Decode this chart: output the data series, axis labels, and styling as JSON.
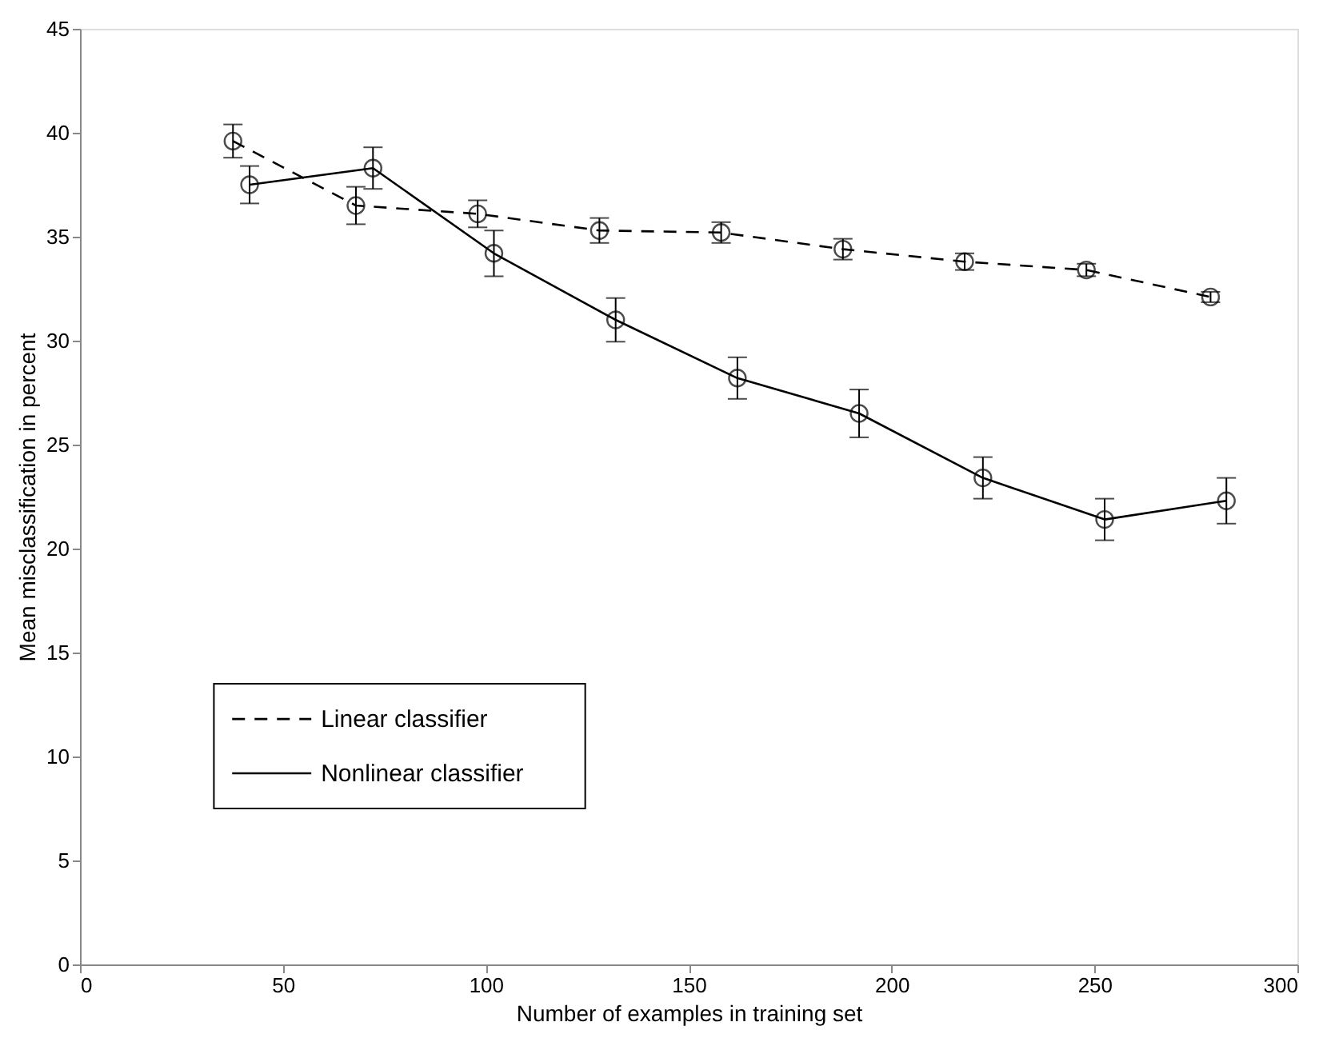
{
  "chart_data": {
    "type": "line",
    "xlabel": "Number of examples in training set",
    "ylabel": "Mean misclassification in percent",
    "xlim": [
      0,
      300
    ],
    "xticks": [
      0,
      50,
      100,
      150,
      200,
      250,
      300
    ],
    "ylim": [
      0,
      45
    ],
    "yticks": [
      0,
      5,
      10,
      15,
      20,
      25,
      30,
      35,
      40,
      45
    ],
    "grid": false,
    "legend": "bottom left",
    "marker": "circle",
    "series": [
      {
        "name": "Linear classifier",
        "color": "#000000",
        "line_style": "dashed",
        "x": [
          37.7,
          68,
          98,
          128,
          158,
          188,
          218,
          248,
          278.6
        ],
        "values": [
          39.6,
          36.5,
          36.1,
          35.3,
          35.2,
          34.4,
          33.8,
          33.4,
          32.1
        ],
        "errors": [
          0.8,
          0.9,
          0.65,
          0.6,
          0.5,
          0.5,
          0.4,
          0.3,
          0.25
        ]
      },
      {
        "name": "Nonlinear classifier",
        "color": "#000000",
        "line_style": "solid",
        "x": [
          41.8,
          72.2,
          102,
          132,
          162,
          192,
          222.5,
          252.5,
          282.5
        ],
        "values": [
          37.5,
          38.3,
          34.2,
          31.0,
          28.2,
          26.5,
          23.4,
          21.4,
          22.3
        ],
        "errors": [
          0.9,
          1.0,
          1.1,
          1.05,
          1.0,
          1.15,
          1.0,
          1.0,
          1.1
        ]
      }
    ]
  }
}
